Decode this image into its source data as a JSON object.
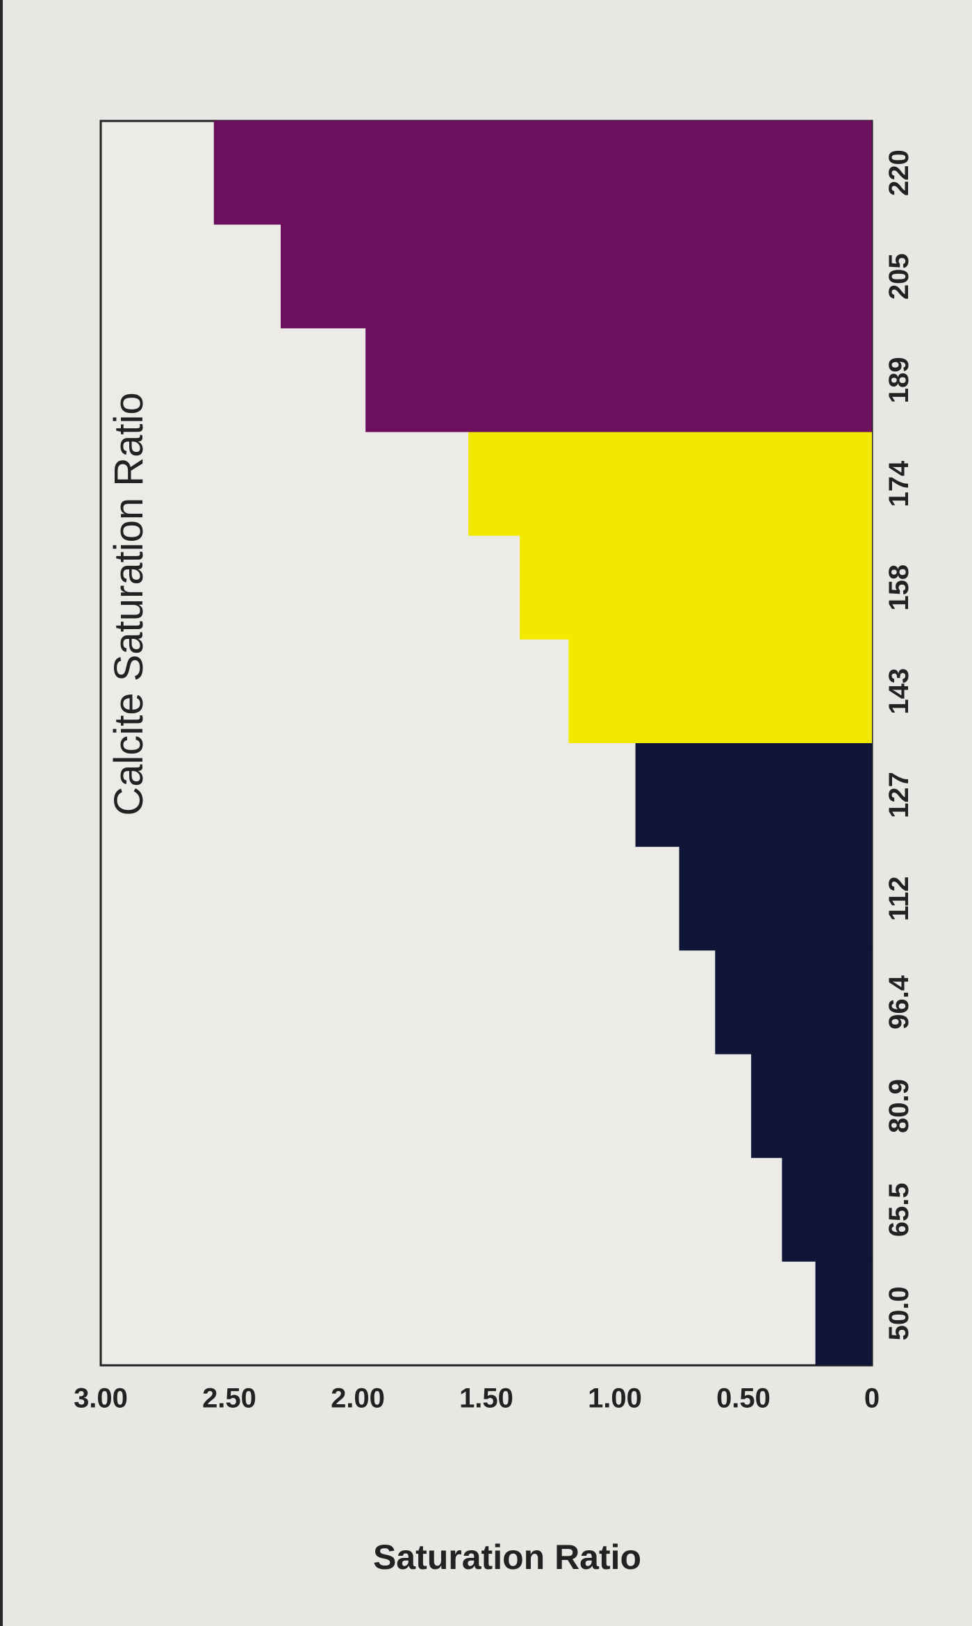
{
  "chart_data": {
    "type": "bar",
    "title": "Calcite Saturation Ratio",
    "ylabel": "Saturation Ratio",
    "xlabel": "",
    "categories": [
      "50.0",
      "65.5",
      "80.9",
      "96.4",
      "112",
      "127",
      "143",
      "158",
      "174",
      "189",
      "205",
      "220"
    ],
    "values": [
      0.22,
      0.35,
      0.47,
      0.61,
      0.75,
      0.92,
      1.18,
      1.37,
      1.57,
      1.97,
      2.3,
      2.56
    ],
    "y_tick_labels": [
      "0",
      "0.50",
      "1.00",
      "1.50",
      "2.00",
      "2.50",
      "3.00"
    ],
    "ylim": [
      0,
      3
    ],
    "grid": false,
    "legend": "none",
    "bar_colors": [
      "#0e1536",
      "#0e1536",
      "#0e1536",
      "#0e1536",
      "#0e1536",
      "#0e1536",
      "#f2e900",
      "#f2e900",
      "#f2e900",
      "#6b0f5e",
      "#6b0f5e",
      "#6b0f5e"
    ]
  }
}
